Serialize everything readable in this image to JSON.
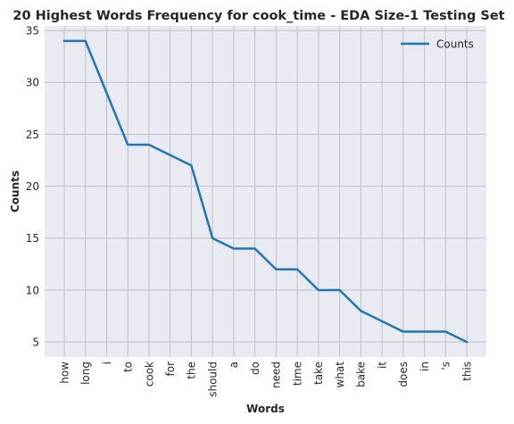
{
  "chart_data": {
    "type": "line",
    "title": "20 Highest Words Frequency for cook_time - EDA Size-1 Testing Set",
    "xlabel": "Words",
    "ylabel": "Counts",
    "categories": [
      "how",
      "long",
      "i",
      "to",
      "cook",
      "for",
      "the",
      "should",
      "a",
      "do",
      "need",
      "time",
      "take",
      "what",
      "bake",
      "it",
      "does",
      "in",
      "'s",
      "this"
    ],
    "series": [
      {
        "name": "Counts",
        "values": [
          34,
          34,
          29,
          24,
          24,
          23,
          22,
          15,
          14,
          14,
          12,
          12,
          10,
          10,
          8,
          7,
          6,
          6,
          6,
          5
        ],
        "color": "#1f77b4"
      }
    ],
    "yticks": [
      5,
      10,
      15,
      20,
      25,
      30,
      35
    ],
    "ylim": [
      3.55,
      35.45
    ],
    "grid": true,
    "legend_position": "top-right",
    "colors": {
      "plot_background": "#eaeaf2",
      "grid": "#c0c0c0",
      "line": "#1f77b4",
      "text": "#262626"
    }
  }
}
